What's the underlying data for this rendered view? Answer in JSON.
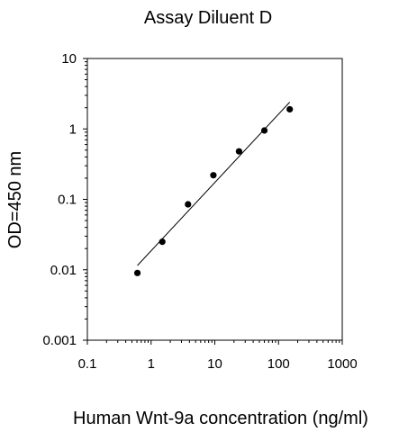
{
  "chart_data": {
    "type": "scatter",
    "title": "Assay Diluent D",
    "xlabel": "Human Wnt-9a concentration (ng/ml)",
    "ylabel": "OD=450 nm",
    "xscale": "log",
    "yscale": "log",
    "xlim": [
      0.1,
      1000
    ],
    "ylim": [
      0.001,
      10
    ],
    "x_ticks": [
      {
        "value": 0.1,
        "label": "0.1"
      },
      {
        "value": 1,
        "label": "1"
      },
      {
        "value": 10,
        "label": "10"
      },
      {
        "value": 100,
        "label": "100"
      },
      {
        "value": 1000,
        "label": "1000"
      }
    ],
    "y_ticks": [
      {
        "value": 0.001,
        "label": "0.001"
      },
      {
        "value": 0.01,
        "label": "0.01"
      },
      {
        "value": 0.1,
        "label": "0.1"
      },
      {
        "value": 1,
        "label": "1"
      },
      {
        "value": 10,
        "label": "10"
      }
    ],
    "grid": false,
    "legend": "none",
    "series": [
      {
        "points": [
          {
            "x": 0.61,
            "y": 0.009
          },
          {
            "x": 1.5,
            "y": 0.025
          },
          {
            "x": 3.8,
            "y": 0.085
          },
          {
            "x": 9.5,
            "y": 0.22
          },
          {
            "x": 24,
            "y": 0.48
          },
          {
            "x": 60,
            "y": 0.95
          },
          {
            "x": 150,
            "y": 1.9
          }
        ]
      }
    ],
    "fit_line": {
      "x": [
        0.61,
        150
      ],
      "y": [
        0.0115,
        2.4
      ]
    },
    "colors": {
      "points": "#000000",
      "line": "#000000",
      "axes": "#000000"
    }
  }
}
